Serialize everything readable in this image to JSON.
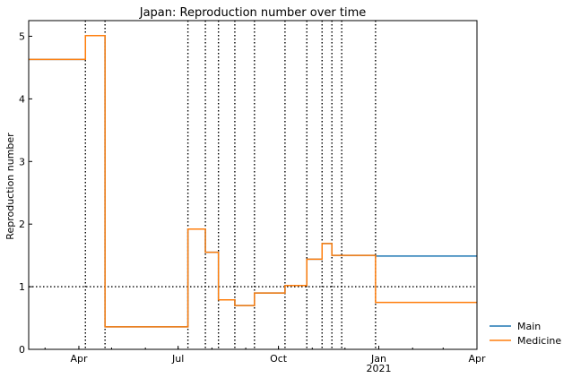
{
  "chart_data": {
    "type": "line",
    "title": "Japan: Reproduction number over time",
    "xlabel": "",
    "ylabel": "Reproduction number",
    "xlim": [
      "2020-02-15",
      "2021-04-01"
    ],
    "ylim": [
      0,
      5.25
    ],
    "x_ticks": [
      {
        "date": "2020-04-01",
        "label": "Apr",
        "sublabel": ""
      },
      {
        "date": "2020-07-01",
        "label": "Jul",
        "sublabel": ""
      },
      {
        "date": "2020-10-01",
        "label": "Oct",
        "sublabel": ""
      },
      {
        "date": "2021-01-01",
        "label": "Jan",
        "sublabel": "2021"
      },
      {
        "date": "2021-04-01",
        "label": "Apr",
        "sublabel": ""
      }
    ],
    "y_ticks": [
      0,
      1,
      2,
      3,
      4,
      5
    ],
    "reference_line_y": 1,
    "change_dates": [
      "2020-04-07",
      "2020-04-25",
      "2020-07-10",
      "2020-07-26",
      "2020-08-07",
      "2020-08-22",
      "2020-09-09",
      "2020-10-07",
      "2020-10-27",
      "2020-11-10",
      "2020-11-19",
      "2020-11-28",
      "2020-12-29"
    ],
    "legend_position": "right-bottom",
    "series": [
      {
        "name": "Main",
        "color": "#1f77b4",
        "steps": [
          {
            "start": "2020-02-15",
            "value": 4.63
          },
          {
            "start": "2020-04-07",
            "value": 5.01
          },
          {
            "start": "2020-04-25",
            "value": 0.36
          },
          {
            "start": "2020-07-10",
            "value": 1.92
          },
          {
            "start": "2020-07-26",
            "value": 1.55
          },
          {
            "start": "2020-08-07",
            "value": 0.79
          },
          {
            "start": "2020-08-22",
            "value": 0.7
          },
          {
            "start": "2020-09-09",
            "value": 0.9
          },
          {
            "start": "2020-10-07",
            "value": 1.02
          },
          {
            "start": "2020-10-27",
            "value": 1.44
          },
          {
            "start": "2020-11-10",
            "value": 1.69
          },
          {
            "start": "2020-11-19",
            "value": 1.5
          },
          {
            "start": "2020-12-29",
            "value": 1.49
          }
        ],
        "end": "2021-04-01"
      },
      {
        "name": "Medicine",
        "color": "#ff7f0e",
        "steps": [
          {
            "start": "2020-02-15",
            "value": 4.63
          },
          {
            "start": "2020-04-07",
            "value": 5.01
          },
          {
            "start": "2020-04-25",
            "value": 0.36
          },
          {
            "start": "2020-07-10",
            "value": 1.92
          },
          {
            "start": "2020-07-26",
            "value": 1.55
          },
          {
            "start": "2020-08-07",
            "value": 0.79
          },
          {
            "start": "2020-08-22",
            "value": 0.7
          },
          {
            "start": "2020-09-09",
            "value": 0.9
          },
          {
            "start": "2020-10-07",
            "value": 1.02
          },
          {
            "start": "2020-10-27",
            "value": 1.44
          },
          {
            "start": "2020-11-10",
            "value": 1.69
          },
          {
            "start": "2020-11-19",
            "value": 1.5
          },
          {
            "start": "2020-12-29",
            "value": 0.75
          }
        ],
        "end": "2021-04-01"
      }
    ]
  }
}
